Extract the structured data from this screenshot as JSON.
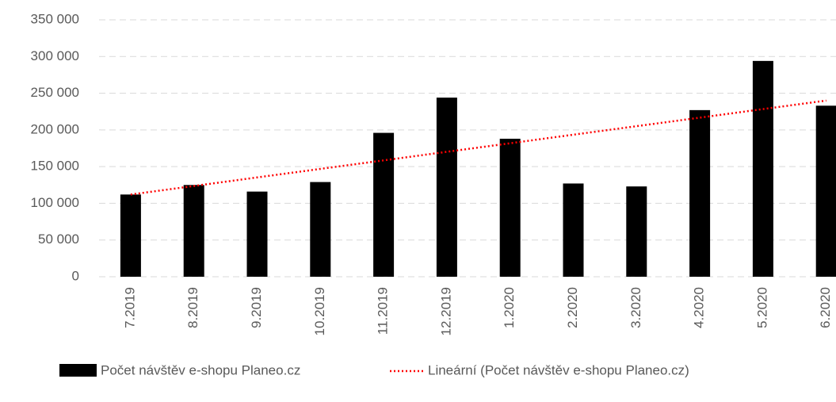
{
  "chart_data": {
    "type": "bar",
    "categories": [
      "7.2019",
      "8.2019",
      "9.2019",
      "10.2019",
      "11.2019",
      "12.2019",
      "1.2020",
      "2.2020",
      "3.2020",
      "4.2020",
      "5.2020",
      "6.2020"
    ],
    "series": [
      {
        "name": "Počet návštěv e-shopu Planeo.cz",
        "color": "#000000",
        "values": [
          112000,
          125000,
          116000,
          129000,
          196000,
          244000,
          188000,
          127000,
          123000,
          227000,
          294000,
          233000
        ]
      },
      {
        "name": "Lineární (Počet návštěv e-shopu Planeo.cz)",
        "color": "#ff0000",
        "values": [
          112000,
          123600,
          135300,
          146900,
          158500,
          170200,
          181800,
          193500,
          205100,
          216700,
          228400,
          240000
        ]
      }
    ],
    "ylim": [
      0,
      350000
    ],
    "yticks": [
      0,
      {
        "value": 50000,
        "label": "50 000"
      },
      {
        "value": 100000,
        "label": "100 000"
      },
      {
        "value": 150000,
        "label": "150 000"
      },
      {
        "value": 200000,
        "label": "200 000"
      },
      {
        "value": 250000,
        "label": "250 000"
      },
      {
        "value": 300000,
        "label": "300 000"
      },
      {
        "value": 350000,
        "label": "350 000"
      }
    ],
    "grid": true
  }
}
